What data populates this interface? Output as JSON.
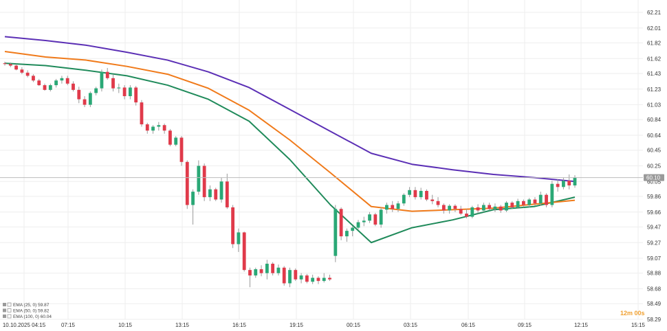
{
  "chart_data": {
    "type": "candlestick",
    "y_axis": {
      "ticks": [
        "62.21",
        "62.01",
        "61.82",
        "61.62",
        "61.43",
        "61.23",
        "61.03",
        "60.84",
        "60.64",
        "60.45",
        "60.25",
        "60.05",
        "59.86",
        "59.66",
        "59.47",
        "59.27",
        "59.07",
        "58.88",
        "58.68",
        "58.49",
        "58.29"
      ],
      "ylim": [
        58.29,
        62.21
      ]
    },
    "x_axis": {
      "ticks": [
        "10.10.2025 04:15",
        "07:15",
        "10:15",
        "13:15",
        "16:15",
        "19:15",
        "00:15",
        "03:15",
        "06:15",
        "09:15",
        "12:15",
        "15:15"
      ]
    },
    "current_price": "60.10",
    "countdown": "12m 00s",
    "legend": [
      {
        "text": "EMA (25, 0) 59.87",
        "color": "#1f8a5a"
      },
      {
        "text": "EMA (50, 0) 59.82",
        "color": "#f07a1a"
      },
      {
        "text": "EMA (100, 0) 60.04",
        "color": "#5b2fb5"
      }
    ],
    "colors": {
      "up": "#2aa876",
      "down": "#e03a4a",
      "grid": "#eeeeee",
      "price_line": "#bbbbbb",
      "price_label_bg": "#9a9a9a",
      "wick": "#999999"
    },
    "ema": [
      {
        "name": "EMA 25",
        "color": "#1f8a5a",
        "values": [
          61.56,
          61.53,
          61.47,
          61.4,
          61.28,
          61.1,
          60.82,
          60.33,
          59.75,
          59.27,
          59.46,
          59.56,
          59.69,
          59.73,
          59.85
        ]
      },
      {
        "name": "EMA 50",
        "color": "#f07a1a",
        "values": [
          61.71,
          61.64,
          61.6,
          61.52,
          61.42,
          61.24,
          60.96,
          60.58,
          60.16,
          59.73,
          59.67,
          59.69,
          59.71,
          59.76,
          59.81
        ]
      },
      {
        "name": "EMA 100",
        "color": "#5b2fb5",
        "values": [
          61.9,
          61.85,
          61.79,
          61.7,
          61.6,
          61.45,
          61.25,
          60.97,
          60.69,
          60.41,
          60.27,
          60.2,
          60.14,
          60.1,
          60.05
        ]
      }
    ],
    "candles": [
      [
        61.56,
        61.58,
        61.53,
        61.55
      ],
      [
        61.55,
        61.57,
        61.51,
        61.53
      ],
      [
        61.53,
        61.55,
        61.47,
        61.48
      ],
      [
        61.48,
        61.51,
        61.42,
        61.44
      ],
      [
        61.44,
        61.47,
        61.38,
        61.4
      ],
      [
        61.4,
        61.42,
        61.32,
        61.34
      ],
      [
        61.34,
        61.36,
        61.27,
        61.28
      ],
      [
        61.28,
        61.3,
        61.21,
        61.22
      ],
      [
        61.22,
        61.3,
        61.2,
        61.28
      ],
      [
        61.28,
        61.36,
        61.25,
        61.34
      ],
      [
        61.34,
        61.4,
        61.3,
        61.37
      ],
      [
        61.37,
        61.4,
        61.28,
        61.3
      ],
      [
        61.3,
        61.33,
        61.2,
        61.22
      ],
      [
        61.22,
        61.26,
        61.05,
        61.1
      ],
      [
        61.1,
        61.14,
        61.0,
        61.03
      ],
      [
        61.03,
        61.2,
        61.0,
        61.18
      ],
      [
        61.18,
        61.26,
        61.15,
        61.24
      ],
      [
        61.24,
        61.48,
        61.2,
        61.45
      ],
      [
        61.45,
        61.5,
        61.35,
        61.37
      ],
      [
        61.37,
        61.42,
        61.2,
        61.24
      ],
      [
        61.24,
        61.3,
        61.18,
        61.25
      ],
      [
        61.25,
        61.28,
        61.1,
        61.14
      ],
      [
        61.14,
        61.28,
        61.1,
        61.25
      ],
      [
        61.25,
        61.27,
        61.02,
        61.06
      ],
      [
        61.06,
        61.09,
        60.75,
        60.78
      ],
      [
        60.78,
        60.8,
        60.66,
        60.7
      ],
      [
        60.7,
        60.77,
        60.66,
        60.75
      ],
      [
        60.75,
        60.81,
        60.7,
        60.77
      ],
      [
        60.77,
        60.79,
        60.66,
        60.7
      ],
      [
        60.7,
        60.72,
        60.5,
        60.52
      ],
      [
        60.52,
        60.63,
        60.5,
        60.61
      ],
      [
        60.61,
        60.63,
        60.25,
        60.3
      ],
      [
        60.3,
        60.32,
        59.7,
        59.75
      ],
      [
        59.75,
        59.95,
        59.5,
        59.92
      ],
      [
        59.92,
        60.32,
        59.88,
        60.25
      ],
      [
        60.25,
        60.28,
        59.8,
        59.85
      ],
      [
        59.85,
        60.0,
        59.8,
        59.95
      ],
      [
        59.95,
        59.97,
        59.8,
        59.82
      ],
      [
        59.82,
        60.1,
        59.78,
        60.05
      ],
      [
        60.05,
        60.15,
        59.7,
        59.72
      ],
      [
        59.72,
        59.75,
        59.2,
        59.25
      ],
      [
        59.25,
        59.45,
        59.15,
        59.4
      ],
      [
        59.4,
        59.41,
        58.9,
        58.92
      ],
      [
        58.92,
        58.95,
        58.7,
        58.85
      ],
      [
        58.85,
        58.95,
        58.82,
        58.93
      ],
      [
        58.93,
        58.98,
        58.84,
        58.88
      ],
      [
        58.88,
        59.05,
        58.8,
        59.0
      ],
      [
        59.0,
        59.02,
        58.85,
        58.88
      ],
      [
        58.88,
        58.99,
        58.85,
        58.95
      ],
      [
        58.95,
        58.97,
        58.72,
        58.75
      ],
      [
        58.75,
        58.95,
        58.7,
        58.92
      ],
      [
        58.92,
        58.94,
        58.78,
        58.8
      ],
      [
        58.8,
        58.88,
        58.75,
        58.85
      ],
      [
        58.85,
        58.87,
        58.75,
        58.77
      ],
      [
        58.77,
        58.86,
        58.74,
        58.82
      ],
      [
        58.82,
        58.84,
        58.74,
        58.78
      ],
      [
        58.78,
        58.88,
        58.76,
        58.82
      ],
      [
        58.82,
        58.86,
        58.78,
        58.8
      ],
      [
        59.1,
        59.75,
        59.02,
        59.7
      ],
      [
        59.7,
        59.72,
        59.3,
        59.35
      ],
      [
        59.35,
        59.45,
        59.28,
        59.42
      ],
      [
        59.42,
        59.48,
        59.35,
        59.46
      ],
      [
        59.46,
        59.56,
        59.44,
        59.53
      ],
      [
        59.53,
        59.6,
        59.48,
        59.55
      ],
      [
        59.55,
        59.66,
        59.52,
        59.63
      ],
      [
        59.63,
        59.65,
        59.48,
        59.5
      ],
      [
        59.5,
        59.72,
        59.46,
        59.69
      ],
      [
        59.69,
        59.78,
        59.64,
        59.75
      ],
      [
        59.75,
        59.8,
        59.66,
        59.7
      ],
      [
        59.7,
        59.8,
        59.66,
        59.77
      ],
      [
        59.77,
        59.9,
        59.74,
        59.88
      ],
      [
        59.88,
        59.98,
        59.85,
        59.94
      ],
      [
        59.94,
        59.98,
        59.82,
        59.85
      ],
      [
        59.85,
        59.97,
        59.82,
        59.93
      ],
      [
        59.93,
        59.95,
        59.8,
        59.82
      ],
      [
        59.82,
        59.88,
        59.76,
        59.8
      ],
      [
        59.8,
        59.85,
        59.72,
        59.75
      ],
      [
        59.75,
        59.77,
        59.64,
        59.68
      ],
      [
        59.68,
        59.76,
        59.64,
        59.74
      ],
      [
        59.74,
        59.76,
        59.66,
        59.7
      ],
      [
        59.7,
        59.74,
        59.62,
        59.64
      ],
      [
        59.64,
        59.7,
        59.58,
        59.6
      ],
      [
        59.6,
        59.74,
        59.58,
        59.72
      ],
      [
        59.72,
        59.76,
        59.64,
        59.68
      ],
      [
        59.68,
        59.78,
        59.66,
        59.75
      ],
      [
        59.75,
        59.78,
        59.68,
        59.7
      ],
      [
        59.7,
        59.77,
        59.66,
        59.73
      ],
      [
        59.73,
        59.75,
        59.65,
        59.68
      ],
      [
        59.68,
        59.8,
        59.66,
        59.78
      ],
      [
        59.78,
        59.8,
        59.7,
        59.72
      ],
      [
        59.72,
        59.83,
        59.7,
        59.8
      ],
      [
        59.8,
        59.82,
        59.72,
        59.75
      ],
      [
        59.75,
        59.84,
        59.72,
        59.82
      ],
      [
        59.82,
        59.85,
        59.74,
        59.77
      ],
      [
        59.77,
        59.92,
        59.74,
        59.88
      ],
      [
        59.88,
        59.9,
        59.72,
        59.75
      ],
      [
        59.75,
        60.06,
        59.72,
        60.02
      ],
      [
        60.02,
        60.08,
        59.92,
        59.98
      ],
      [
        59.98,
        60.1,
        59.95,
        60.06
      ],
      [
        60.06,
        60.14,
        59.95,
        60.0
      ],
      [
        60.0,
        60.13,
        59.97,
        60.1
      ]
    ]
  }
}
